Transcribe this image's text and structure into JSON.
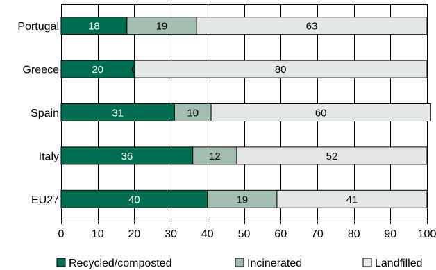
{
  "chart_data": {
    "type": "bar",
    "orientation": "horizontal",
    "stacked": true,
    "categories": [
      "Portugal",
      "Greece",
      "Spain",
      "Italy",
      "EU27"
    ],
    "series": [
      {
        "name": "Recycled/composted",
        "values": [
          18,
          20,
          31,
          36,
          40
        ],
        "color": "#006e51",
        "label_color": "#ffffff"
      },
      {
        "name": "Incinerated",
        "values": [
          19,
          0,
          10,
          12,
          19
        ],
        "color": "#a2bfb0",
        "label_color": "#000000"
      },
      {
        "name": "Landfilled",
        "values": [
          63,
          80,
          60,
          52,
          41
        ],
        "color": "#e4e8e5",
        "label_color": "#000000"
      }
    ],
    "xlim": [
      0,
      100
    ],
    "xticks": [
      0,
      10,
      20,
      30,
      40,
      50,
      60,
      70,
      80,
      90,
      100
    ],
    "grid": "vertical",
    "legend_position": "bottom",
    "colors": {
      "grid": "#000000",
      "bar_outline": "#000000"
    }
  }
}
